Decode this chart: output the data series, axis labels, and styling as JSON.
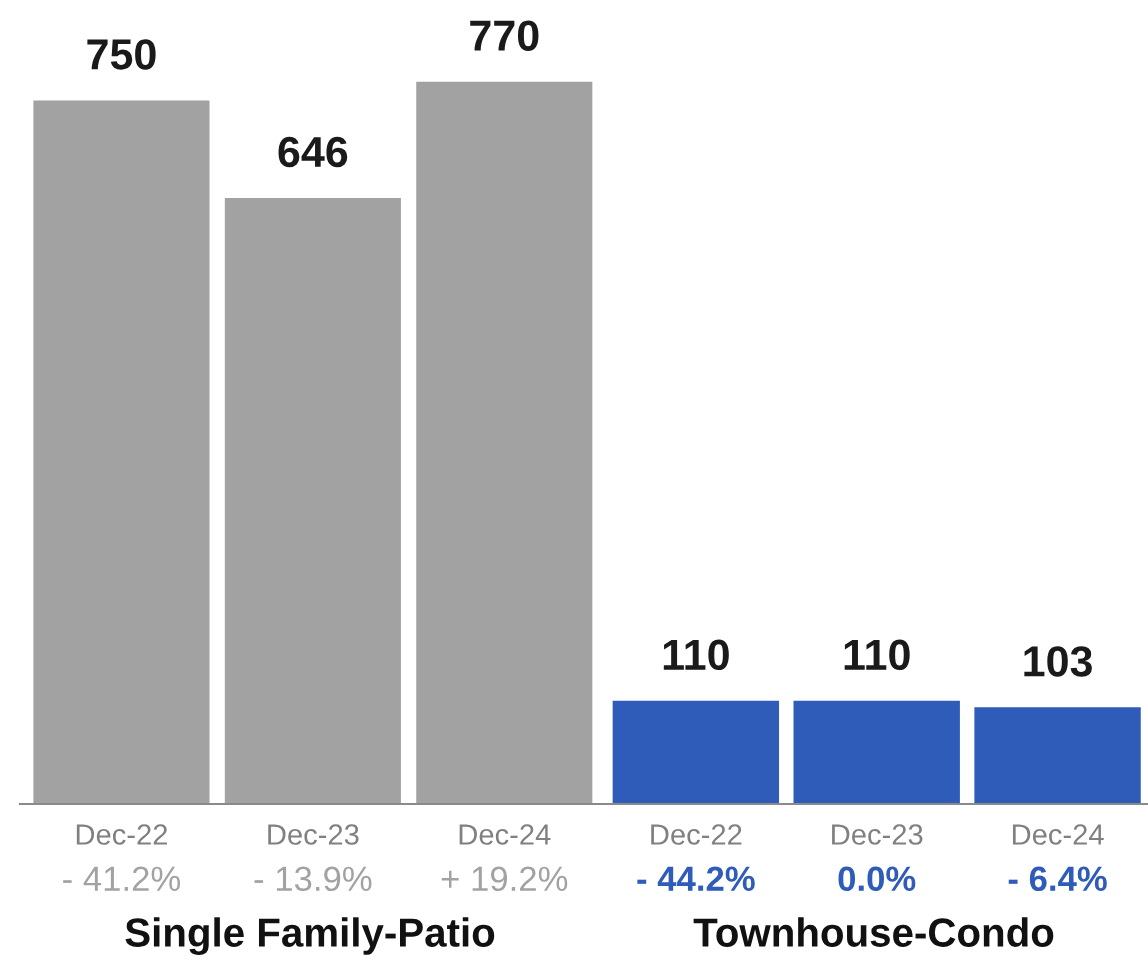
{
  "chart_data": [
    {
      "type": "bar",
      "categories": [
        "Dec-22",
        "Dec-23",
        "Dec-24"
      ],
      "values": [
        750,
        646,
        770
      ],
      "color": "#a2a2a2",
      "data_labels": true,
      "xlabel": "Single Family-Patio",
      "annotations": [
        "- 41.2%",
        "- 13.9%",
        "+ 19.2%"
      ]
    },
    {
      "type": "bar",
      "categories": [
        "Dec-22",
        "Dec-23",
        "Dec-24"
      ],
      "values": [
        110,
        110,
        103
      ],
      "color": "#2e5cb8",
      "data_labels": true,
      "xlabel": "Townhouse-Condo",
      "annotations": [
        "- 44.2%",
        "0.0%",
        "- 6.4%"
      ]
    }
  ]
}
